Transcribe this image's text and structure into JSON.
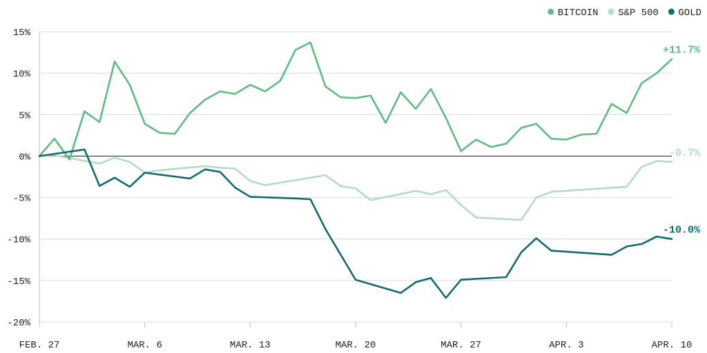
{
  "chart_data": {
    "type": "line",
    "title": "",
    "xlabel": "",
    "ylabel": "",
    "ylim": [
      -20,
      15
    ],
    "yticks": [
      15,
      10,
      5,
      0,
      -5,
      -10,
      -15,
      -20
    ],
    "ytick_labels": [
      "15%",
      "10%",
      "5%",
      "0%",
      "-5%",
      "-10%",
      "-15%",
      "-20%"
    ],
    "xlim": [
      "2025-02-27",
      "2025-04-10"
    ],
    "x_ticks": [
      {
        "date": "2025-02-27",
        "label": "FEB. 27"
      },
      {
        "date": "2025-03-06",
        "label": "MAR. 6"
      },
      {
        "date": "2025-03-13",
        "label": "MAR. 13"
      },
      {
        "date": "2025-03-20",
        "label": "MAR. 20"
      },
      {
        "date": "2025-03-27",
        "label": "MAR. 27"
      },
      {
        "date": "2025-04-03",
        "label": "APR. 3"
      },
      {
        "date": "2025-04-10",
        "label": "APR. 10"
      }
    ],
    "grid": true,
    "legend_position": "top-right",
    "series": [
      {
        "name": "BITCOIN",
        "color": "#5fbb7f",
        "end_label": "+11.7%",
        "points": [
          {
            "x": "2025-02-27",
            "y": 0
          },
          {
            "x": "2025-02-28",
            "y": 2.1
          },
          {
            "x": "2025-03-01",
            "y": -0.4
          },
          {
            "x": "2025-03-02",
            "y": 5.4
          },
          {
            "x": "2025-03-03",
            "y": 4.1
          },
          {
            "x": "2025-03-04",
            "y": 11.4
          },
          {
            "x": "2025-03-05",
            "y": 8.6
          },
          {
            "x": "2025-03-06",
            "y": 3.9
          },
          {
            "x": "2025-03-07",
            "y": 2.8
          },
          {
            "x": "2025-03-08",
            "y": 2.7
          },
          {
            "x": "2025-03-09",
            "y": 5.2
          },
          {
            "x": "2025-03-10",
            "y": 6.8
          },
          {
            "x": "2025-03-11",
            "y": 7.8
          },
          {
            "x": "2025-03-12",
            "y": 7.5
          },
          {
            "x": "2025-03-13",
            "y": 8.6
          },
          {
            "x": "2025-03-14",
            "y": 7.8
          },
          {
            "x": "2025-03-15",
            "y": 9.1
          },
          {
            "x": "2025-03-16",
            "y": 12.8
          },
          {
            "x": "2025-03-17",
            "y": 13.7
          },
          {
            "x": "2025-03-18",
            "y": 8.4
          },
          {
            "x": "2025-03-19",
            "y": 7.1
          },
          {
            "x": "2025-03-20",
            "y": 7.0
          },
          {
            "x": "2025-03-21",
            "y": 7.3
          },
          {
            "x": "2025-03-22",
            "y": 4.0
          },
          {
            "x": "2025-03-23",
            "y": 7.7
          },
          {
            "x": "2025-03-24",
            "y": 5.7
          },
          {
            "x": "2025-03-25",
            "y": 8.1
          },
          {
            "x": "2025-03-26",
            "y": 4.6
          },
          {
            "x": "2025-03-27",
            "y": 0.6
          },
          {
            "x": "2025-03-28",
            "y": 2.0
          },
          {
            "x": "2025-03-29",
            "y": 1.1
          },
          {
            "x": "2025-03-30",
            "y": 1.5
          },
          {
            "x": "2025-03-31",
            "y": 3.4
          },
          {
            "x": "2025-04-01",
            "y": 3.9
          },
          {
            "x": "2025-04-02",
            "y": 2.1
          },
          {
            "x": "2025-04-03",
            "y": 2.0
          },
          {
            "x": "2025-04-04",
            "y": 2.6
          },
          {
            "x": "2025-04-05",
            "y": 2.7
          },
          {
            "x": "2025-04-06",
            "y": 6.3
          },
          {
            "x": "2025-04-07",
            "y": 5.2
          },
          {
            "x": "2025-04-08",
            "y": 8.8
          },
          {
            "x": "2025-04-09",
            "y": 10.0
          },
          {
            "x": "2025-04-10",
            "y": 11.7
          }
        ]
      },
      {
        "name": "S&P 500",
        "color": "#b3dcc2",
        "end_label": "-0.7%",
        "points": [
          {
            "x": "2025-02-27",
            "y": 0
          },
          {
            "x": "2025-02-28",
            "y": 0.1
          },
          {
            "x": "2025-03-03",
            "y": -0.9
          },
          {
            "x": "2025-03-04",
            "y": -0.2
          },
          {
            "x": "2025-03-05",
            "y": -0.7
          },
          {
            "x": "2025-03-06",
            "y": -2.0
          },
          {
            "x": "2025-03-07",
            "y": -1.7
          },
          {
            "x": "2025-03-10",
            "y": -1.2
          },
          {
            "x": "2025-03-11",
            "y": -1.4
          },
          {
            "x": "2025-03-12",
            "y": -1.5
          },
          {
            "x": "2025-03-13",
            "y": -3.0
          },
          {
            "x": "2025-03-14",
            "y": -3.5
          },
          {
            "x": "2025-03-17",
            "y": -2.6
          },
          {
            "x": "2025-03-18",
            "y": -2.3
          },
          {
            "x": "2025-03-19",
            "y": -3.6
          },
          {
            "x": "2025-03-20",
            "y": -3.9
          },
          {
            "x": "2025-03-21",
            "y": -5.3
          },
          {
            "x": "2025-03-24",
            "y": -4.2
          },
          {
            "x": "2025-03-25",
            "y": -4.6
          },
          {
            "x": "2025-03-26",
            "y": -4.1
          },
          {
            "x": "2025-03-27",
            "y": -5.9
          },
          {
            "x": "2025-03-28",
            "y": -7.4
          },
          {
            "x": "2025-03-31",
            "y": -7.7
          },
          {
            "x": "2025-04-01",
            "y": -5.0
          },
          {
            "x": "2025-04-02",
            "y": -4.3
          },
          {
            "x": "2025-04-07",
            "y": -3.7
          },
          {
            "x": "2025-04-08",
            "y": -1.3
          },
          {
            "x": "2025-04-09",
            "y": -0.6
          },
          {
            "x": "2025-04-10",
            "y": -0.7
          }
        ]
      },
      {
        "name": "GOLD",
        "color": "#116a6e",
        "end_label": "-10.0%",
        "points": [
          {
            "x": "2025-02-27",
            "y": 0
          },
          {
            "x": "2025-03-02",
            "y": 0.8
          },
          {
            "x": "2025-03-03",
            "y": -3.6
          },
          {
            "x": "2025-03-04",
            "y": -2.6
          },
          {
            "x": "2025-03-05",
            "y": -3.7
          },
          {
            "x": "2025-03-06",
            "y": -2.0
          },
          {
            "x": "2025-03-09",
            "y": -2.7
          },
          {
            "x": "2025-03-10",
            "y": -1.6
          },
          {
            "x": "2025-03-11",
            "y": -1.9
          },
          {
            "x": "2025-03-12",
            "y": -3.8
          },
          {
            "x": "2025-03-13",
            "y": -4.9
          },
          {
            "x": "2025-03-16",
            "y": -5.1
          },
          {
            "x": "2025-03-17",
            "y": -5.2
          },
          {
            "x": "2025-03-18",
            "y": -8.8
          },
          {
            "x": "2025-03-20",
            "y": -14.9
          },
          {
            "x": "2025-03-23",
            "y": -16.5
          },
          {
            "x": "2025-03-24",
            "y": -15.2
          },
          {
            "x": "2025-03-25",
            "y": -14.7
          },
          {
            "x": "2025-03-26",
            "y": -17.1
          },
          {
            "x": "2025-03-27",
            "y": -14.9
          },
          {
            "x": "2025-03-30",
            "y": -14.6
          },
          {
            "x": "2025-03-31",
            "y": -11.6
          },
          {
            "x": "2025-04-01",
            "y": -9.9
          },
          {
            "x": "2025-04-02",
            "y": -11.4
          },
          {
            "x": "2025-04-06",
            "y": -11.9
          },
          {
            "x": "2025-04-07",
            "y": -10.9
          },
          {
            "x": "2025-04-08",
            "y": -10.6
          },
          {
            "x": "2025-04-09",
            "y": -9.7
          },
          {
            "x": "2025-04-10",
            "y": -10.0
          }
        ]
      }
    ]
  }
}
